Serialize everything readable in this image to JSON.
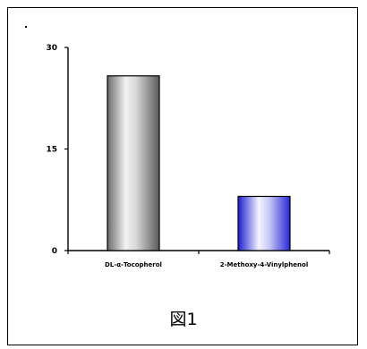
{
  "caption": "図1",
  "chart_data": {
    "type": "bar",
    "categories": [
      "DL-α-Tocopherol",
      "2-Methoxy-4-Vinylphenol"
    ],
    "values": [
      25.8,
      8.0
    ],
    "yticks": [
      0,
      15,
      30
    ],
    "ylim": [
      0,
      30
    ],
    "xlabel": "",
    "ylabel": "",
    "title": "",
    "bar_colors": [
      "#9a9a9a",
      "#3a3ad8"
    ]
  }
}
